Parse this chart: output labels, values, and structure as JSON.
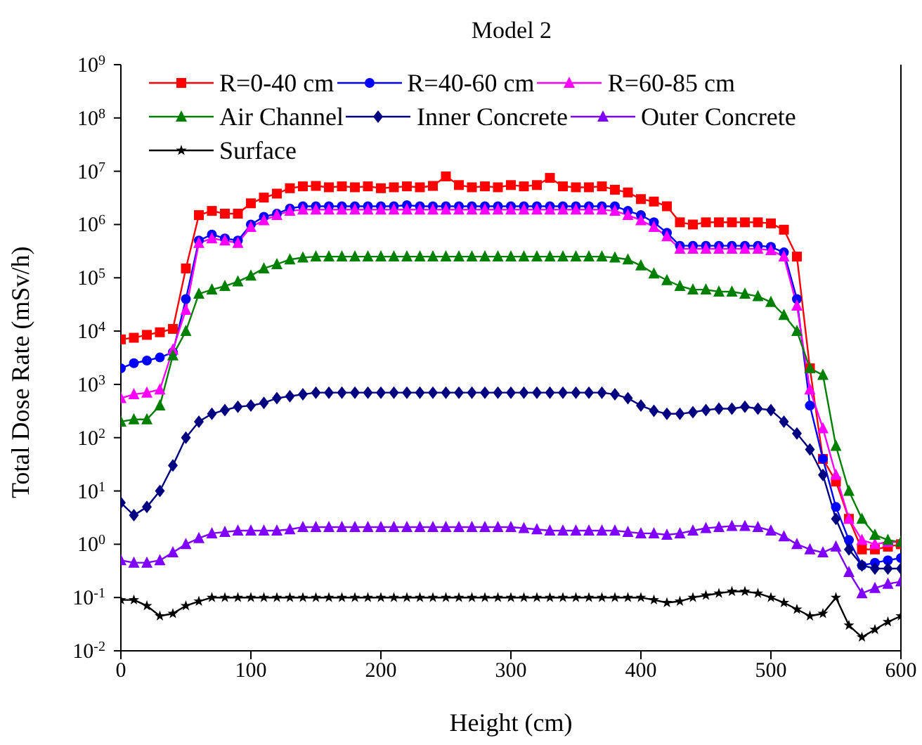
{
  "chart_data": {
    "type": "line",
    "title": "Model 2",
    "xlabel": "Height (cm)",
    "ylabel": "Total Dose Rate (mSv/h)",
    "log": "y",
    "legend": "top",
    "x": [
      0,
      10,
      20,
      30,
      40,
      50,
      60,
      70,
      80,
      90,
      100,
      110,
      120,
      130,
      140,
      150,
      160,
      170,
      180,
      190,
      200,
      210,
      220,
      230,
      240,
      250,
      260,
      270,
      280,
      290,
      300,
      310,
      320,
      330,
      340,
      350,
      360,
      370,
      380,
      390,
      400,
      410,
      420,
      430,
      440,
      450,
      460,
      470,
      480,
      490,
      500,
      510,
      520,
      530,
      540,
      550,
      560,
      570,
      580,
      590,
      600
    ],
    "xlim": [
      0,
      600
    ],
    "xticks": [
      0,
      100,
      200,
      300,
      400,
      500,
      600
    ],
    "ylim": [
      0.01,
      1000000000
    ],
    "yticks": [
      {
        "value": 0.01,
        "label": "10$^{-2}$"
      },
      {
        "value": 0.1,
        "label": "10$^{-1}$"
      },
      {
        "value": 1,
        "label": "10$^{0}$"
      },
      {
        "value": 10,
        "label": "10$^{1}$"
      },
      {
        "value": 100,
        "label": "10$^{2}$"
      },
      {
        "value": 1000,
        "label": "10$^{3}$"
      },
      {
        "value": 10000,
        "label": "10$^{4}$"
      },
      {
        "value": 100000,
        "label": "10$^{5}$"
      },
      {
        "value": 1000000,
        "label": "10$^{6}$"
      },
      {
        "value": 10000000,
        "label": "10$^{7}$"
      },
      {
        "value": 100000000,
        "label": "10$^{8}$"
      },
      {
        "value": 1000000000,
        "label": "10$^{9}$"
      }
    ],
    "series": [
      {
        "name": "R=0-40 cm",
        "color": "#ff0000",
        "marker": "square",
        "values": [
          7000,
          7500,
          8500,
          9500,
          11000,
          150000,
          1500000,
          1800000,
          1600000,
          1600000,
          2500000,
          3200000,
          3800000,
          4800000,
          5200000,
          5300000,
          5000000,
          5200000,
          5000000,
          5200000,
          4800000,
          5000000,
          5200000,
          5000000,
          5300000,
          8000000,
          5500000,
          5000000,
          5200000,
          5000000,
          5500000,
          5200000,
          5500000,
          7500000,
          5200000,
          5000000,
          5000000,
          5200000,
          4500000,
          4000000,
          3000000,
          2700000,
          2200000,
          1100000,
          1000000,
          1100000,
          1100000,
          1100000,
          1100000,
          1100000,
          1050000,
          800000,
          250000,
          2000,
          40,
          15,
          3,
          0.8,
          0.8,
          0.9,
          1
        ]
      },
      {
        "name": "R=40-60 cm",
        "color": "#0000ff",
        "marker": "circle",
        "values": [
          2000,
          2500,
          2800,
          3200,
          4000,
          40000,
          500000,
          650000,
          550000,
          500000,
          1000000,
          1400000,
          1600000,
          2000000,
          2200000,
          2200000,
          2200000,
          2200000,
          2200000,
          2200000,
          2200000,
          2200000,
          2300000,
          2200000,
          2200000,
          2200000,
          2200000,
          2200000,
          2200000,
          2200000,
          2200000,
          2200000,
          2200000,
          2200000,
          2200000,
          2200000,
          2200000,
          2200000,
          2200000,
          1800000,
          1500000,
          1100000,
          700000,
          400000,
          400000,
          400000,
          400000,
          400000,
          400000,
          400000,
          380000,
          300000,
          40000,
          400,
          40,
          5,
          1.2,
          0.4,
          0.45,
          0.5,
          0.55
        ]
      },
      {
        "name": "R=60-85 cm",
        "color": "#ff00ff",
        "marker": "triangle",
        "values": [
          550,
          650,
          700,
          800,
          4500,
          25000,
          450000,
          550000,
          500000,
          450000,
          900000,
          1200000,
          1500000,
          1800000,
          1900000,
          1900000,
          1900000,
          1900000,
          1900000,
          1900000,
          1900000,
          1900000,
          1900000,
          1900000,
          1900000,
          1900000,
          1900000,
          1900000,
          1900000,
          1900000,
          1900000,
          1900000,
          1900000,
          1900000,
          1900000,
          1900000,
          1900000,
          1900000,
          1800000,
          1500000,
          1200000,
          900000,
          600000,
          350000,
          350000,
          350000,
          350000,
          350000,
          350000,
          350000,
          330000,
          250000,
          30000,
          800,
          150,
          20,
          3,
          1.2,
          1,
          1.1,
          1.1
        ]
      },
      {
        "name": "Air Channel",
        "color": "#008000",
        "marker": "triangle",
        "values": [
          200,
          220,
          220,
          400,
          3500,
          10000,
          50000,
          60000,
          70000,
          85000,
          110000,
          150000,
          180000,
          220000,
          240000,
          250000,
          250000,
          250000,
          250000,
          250000,
          250000,
          250000,
          250000,
          250000,
          250000,
          250000,
          250000,
          250000,
          250000,
          250000,
          250000,
          250000,
          250000,
          250000,
          250000,
          250000,
          250000,
          250000,
          240000,
          220000,
          170000,
          120000,
          90000,
          70000,
          60000,
          60000,
          55000,
          55000,
          50000,
          45000,
          35000,
          20000,
          10000,
          2000,
          1500,
          70,
          10,
          3,
          1.5,
          1.2,
          1.1
        ]
      },
      {
        "name": "Inner Concrete",
        "color": "#000080",
        "marker": "diamond",
        "values": [
          6,
          3.5,
          5,
          10,
          30,
          100,
          200,
          280,
          330,
          380,
          400,
          450,
          550,
          600,
          650,
          700,
          700,
          700,
          700,
          700,
          700,
          700,
          700,
          700,
          700,
          700,
          700,
          700,
          700,
          700,
          700,
          700,
          700,
          700,
          700,
          700,
          700,
          700,
          650,
          550,
          400,
          320,
          280,
          280,
          300,
          330,
          350,
          350,
          380,
          350,
          330,
          200,
          120,
          60,
          20,
          3,
          0.8,
          0.4,
          0.35,
          0.35,
          0.35
        ]
      },
      {
        "name": "Outer Concrete",
        "color": "#8000ff",
        "marker": "triangle",
        "values": [
          0.5,
          0.45,
          0.45,
          0.5,
          0.7,
          1,
          1.3,
          1.6,
          1.7,
          1.8,
          1.8,
          1.8,
          1.8,
          1.9,
          2.1,
          2.1,
          2.1,
          2.1,
          2.1,
          2.1,
          2.1,
          2.1,
          2.1,
          2.1,
          2.1,
          2.1,
          2.1,
          2.1,
          2.1,
          2.1,
          2.1,
          2,
          1.9,
          1.8,
          1.8,
          1.8,
          1.8,
          1.8,
          1.8,
          1.7,
          1.6,
          1.6,
          1.5,
          1.6,
          1.8,
          2,
          2.1,
          2.2,
          2.2,
          2.1,
          1.8,
          1.4,
          1,
          0.8,
          0.7,
          0.9,
          0.3,
          0.12,
          0.15,
          0.18,
          0.2
        ]
      },
      {
        "name": "Surface",
        "color": "#000000",
        "marker": "star",
        "values": [
          0.09,
          0.09,
          0.07,
          0.045,
          0.05,
          0.07,
          0.085,
          0.1,
          0.1,
          0.1,
          0.1,
          0.1,
          0.1,
          0.1,
          0.1,
          0.1,
          0.1,
          0.1,
          0.1,
          0.1,
          0.1,
          0.1,
          0.1,
          0.1,
          0.1,
          0.1,
          0.1,
          0.1,
          0.1,
          0.1,
          0.1,
          0.1,
          0.1,
          0.1,
          0.1,
          0.1,
          0.1,
          0.1,
          0.1,
          0.1,
          0.1,
          0.09,
          0.08,
          0.085,
          0.1,
          0.11,
          0.12,
          0.13,
          0.13,
          0.12,
          0.1,
          0.08,
          0.06,
          0.045,
          0.05,
          0.1,
          0.03,
          0.018,
          0.025,
          0.035,
          0.045
        ]
      }
    ]
  }
}
